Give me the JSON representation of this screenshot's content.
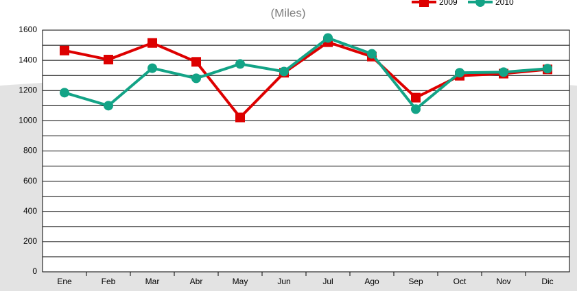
{
  "chart_data": {
    "type": "line",
    "title": "(Miles)",
    "categories": [
      "Ene",
      "Feb",
      "Mar",
      "Abr",
      "May",
      "Jun",
      "Jul",
      "Ago",
      "Sep",
      "Oct",
      "Nov",
      "Dic"
    ],
    "series": [
      {
        "name": "2009",
        "color": "#dd0000",
        "marker": "square",
        "values": [
          1465,
          1405,
          1515,
          1390,
          1022,
          1318,
          1520,
          1425,
          1153,
          1298,
          1312,
          1340
        ]
      },
      {
        "name": "2010",
        "color": "#13a386",
        "marker": "circle",
        "values": [
          1186,
          1100,
          1348,
          1281,
          1376,
          1326,
          1548,
          1443,
          1077,
          1318,
          1322,
          1345
        ]
      }
    ],
    "ylim": [
      0,
      1600
    ],
    "yticks": [
      0,
      200,
      400,
      600,
      800,
      1000,
      1200,
      1400,
      1600
    ],
    "yminorticks": [
      100,
      300,
      500,
      700,
      900,
      1100,
      1300,
      1500
    ],
    "grid": true,
    "legend": "top-right"
  }
}
